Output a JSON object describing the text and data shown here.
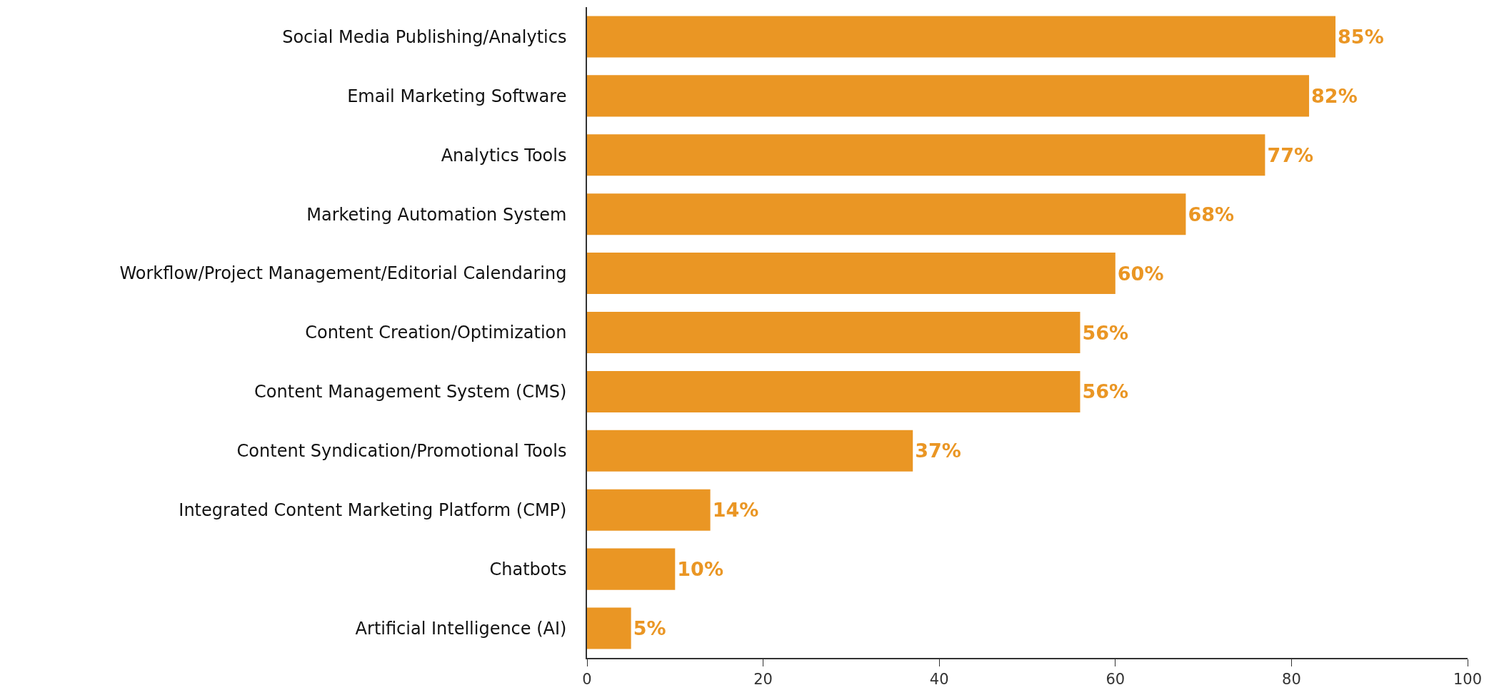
{
  "chart_data": {
    "type": "bar",
    "orientation": "horizontal",
    "categories": [
      "Social Media Publishing/Analytics",
      "Email Marketing Software",
      "Analytics Tools",
      "Marketing Automation System",
      "Workflow/Project Management/Editorial Calendaring",
      "Content Creation/Optimization",
      "Content Management System (CMS)",
      "Content Syndication/Promotional Tools",
      "Integrated Content Marketing Platform (CMP)",
      "Chatbots",
      "Artificial Intelligence (AI)"
    ],
    "values": [
      85,
      82,
      77,
      68,
      60,
      56,
      56,
      37,
      14,
      10,
      5
    ],
    "value_labels": [
      "85%",
      "82%",
      "77%",
      "68%",
      "60%",
      "56%",
      "56%",
      "37%",
      "14%",
      "10%",
      "5%"
    ],
    "color": "#ea9624",
    "xlim": [
      0,
      100
    ],
    "xticks": [
      0,
      20,
      40,
      60,
      80,
      100
    ],
    "grid": false,
    "legend": false
  }
}
